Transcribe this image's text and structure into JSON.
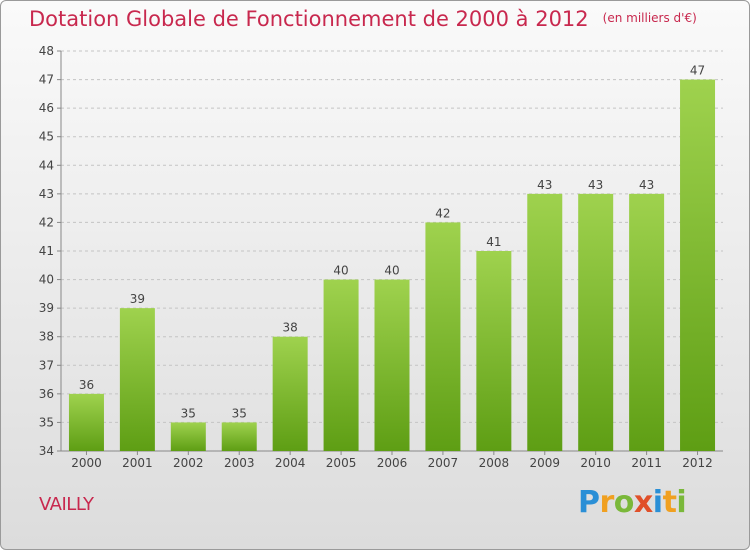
{
  "title": "Dotation Globale de Fonctionnement de 2000 à 2012",
  "unit": "(en milliers d'€)",
  "place": "VAILLY",
  "logo": {
    "text": "Proxiti",
    "letters": [
      {
        "char": "P",
        "color": "#2a8fd6"
      },
      {
        "char": "r",
        "color": "#f0a020"
      },
      {
        "char": "o",
        "color": "#7ab83a"
      },
      {
        "char": "x",
        "color": "#e0502a"
      },
      {
        "char": "i",
        "color": "#2a8fd6"
      },
      {
        "char": "t",
        "color": "#f0a020"
      },
      {
        "char": "i",
        "color": "#7ab83a"
      }
    ]
  },
  "chart_data": {
    "type": "bar",
    "categories": [
      "2000",
      "2001",
      "2002",
      "2003",
      "2004",
      "2005",
      "2006",
      "2007",
      "2008",
      "2009",
      "2010",
      "2011",
      "2012"
    ],
    "values": [
      36,
      39,
      35,
      35,
      38,
      40,
      40,
      42,
      41,
      43,
      43,
      43,
      47
    ],
    "ylim": [
      34,
      48
    ],
    "yticks": [
      34,
      35,
      36,
      37,
      38,
      39,
      40,
      41,
      42,
      43,
      44,
      45,
      46,
      47,
      48
    ],
    "grid": true,
    "bar_color_top": "#9fd24e",
    "bar_color_bottom": "#5e9e14"
  }
}
